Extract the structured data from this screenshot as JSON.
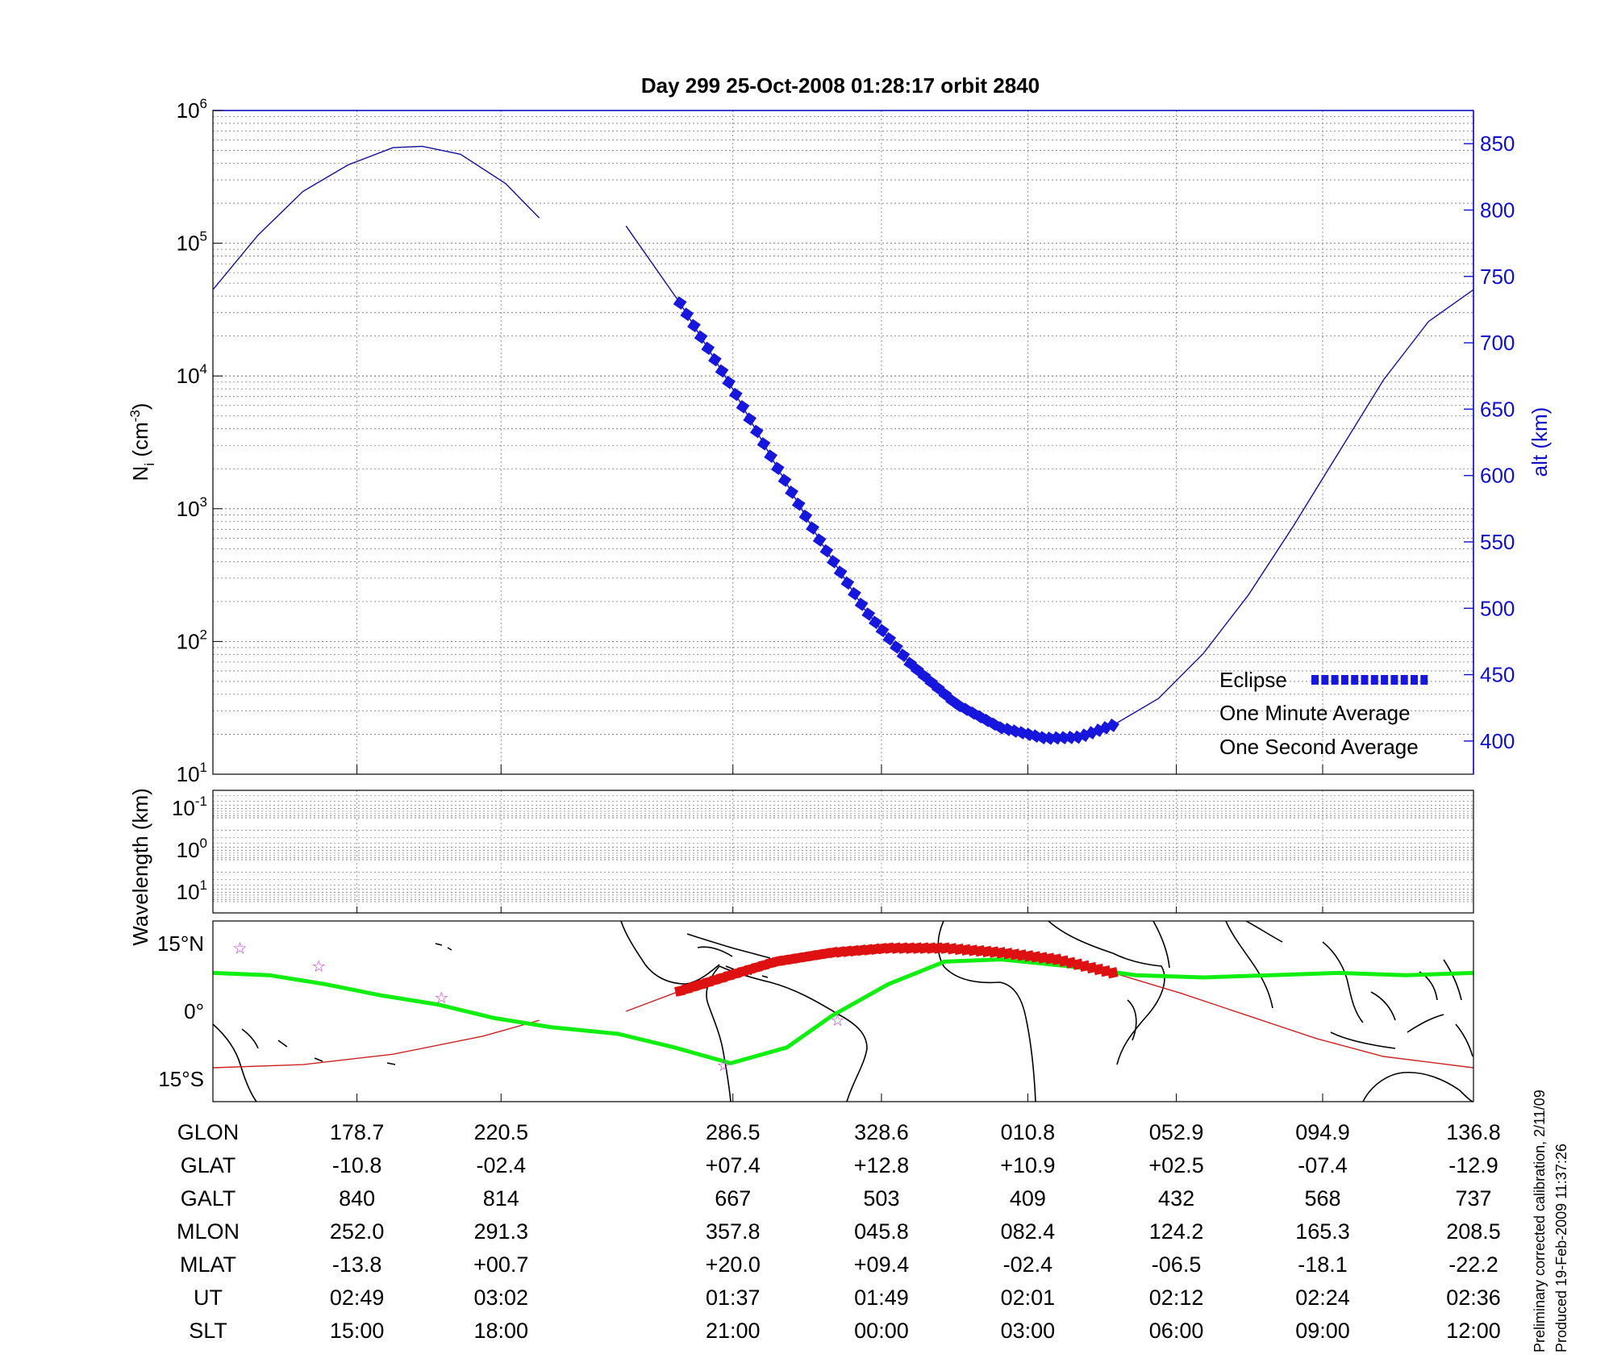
{
  "colors": {
    "altitude": "#10109a",
    "eclipse": "#1616dd",
    "one_minute": "#000000",
    "one_second": "#11ee11",
    "orbit_track": "#cc2222",
    "eclipse_track": "#dd1111",
    "stars": "#cc33cc",
    "right_axis": "#1010cc"
  },
  "chart_data": [
    {
      "type": "line",
      "title": "Day 299  25-Oct-2008 01:28:17   orbit 2840",
      "ylabel_main": "N",
      "ylabel_sub": "i",
      "ylabel_unit": "(cm",
      "ylabel_exp": "-3",
      "ylabel_close": ")",
      "ylog_range": [
        1,
        6
      ],
      "y_ticks": [
        {
          "base": "10",
          "exp": "6",
          "e": 6
        },
        {
          "base": "10",
          "exp": "5",
          "e": 5
        },
        {
          "base": "10",
          "exp": "4",
          "e": 4
        },
        {
          "base": "10",
          "exp": "3",
          "e": 3
        },
        {
          "base": "10",
          "exp": "2",
          "e": 2
        },
        {
          "base": "10",
          "exp": "1",
          "e": 1
        }
      ],
      "y2label": "alt (km)",
      "y2lim": [
        375,
        875
      ],
      "y2_ticks": [
        "850",
        "800",
        "750",
        "700",
        "650",
        "600",
        "550",
        "500",
        "450",
        "400"
      ],
      "x_range_min": [
        0,
        112
      ],
      "x_grid_min": [
        12.8,
        25.6,
        46.2,
        59.4,
        72.4,
        85.6,
        98.6
      ],
      "altitude_series": [
        {
          "t": 0,
          "alt": 740
        },
        {
          "t": 4,
          "alt": 781
        },
        {
          "t": 8,
          "alt": 814
        },
        {
          "t": 12,
          "alt": 834
        },
        {
          "t": 16,
          "alt": 847
        },
        {
          "t": 18.6,
          "alt": 848
        },
        {
          "t": 22,
          "alt": 842
        },
        {
          "t": 26,
          "alt": 820
        },
        {
          "t": 29,
          "alt": 794
        },
        null,
        {
          "t": 36.7,
          "alt": 788
        },
        {
          "t": 41.5,
          "alt": 730
        },
        {
          "t": 46,
          "alt": 668
        },
        {
          "t": 50,
          "alt": 608
        },
        {
          "t": 54,
          "alt": 550
        },
        {
          "t": 58,
          "alt": 498
        },
        {
          "t": 62,
          "alt": 458
        },
        {
          "t": 66,
          "alt": 428
        },
        {
          "t": 70,
          "alt": 410
        },
        {
          "t": 74,
          "alt": 402
        },
        {
          "t": 77,
          "alt": 403
        },
        {
          "t": 80,
          "alt": 412
        },
        {
          "t": 84,
          "alt": 432
        },
        {
          "t": 88,
          "alt": 466
        },
        {
          "t": 92,
          "alt": 510
        },
        {
          "t": 96,
          "alt": 562
        },
        {
          "t": 100,
          "alt": 617
        },
        {
          "t": 104,
          "alt": 672
        },
        {
          "t": 108,
          "alt": 716
        },
        {
          "t": 112,
          "alt": 740
        }
      ],
      "eclipse_range_min": [
        41.5,
        80
      ],
      "legend": [
        {
          "label": "Eclipse",
          "color": "#1616dd"
        },
        {
          "label": "One Minute Average",
          "color": "#000000"
        },
        {
          "label": "One Second Average",
          "color": "#11ee11"
        }
      ]
    },
    {
      "type": "heatmap",
      "ylabel": "Wavelength (km)",
      "y_ticks": [
        {
          "base": "10",
          "exp": "-1"
        },
        {
          "base": "10",
          "exp": "0"
        },
        {
          "base": "10",
          "exp": "1"
        }
      ]
    },
    {
      "type": "line",
      "ylim": [
        -20,
        20
      ],
      "y_ticks": [
        {
          "label": "15°N",
          "value": 15
        },
        {
          "label": "0°",
          "value": 0
        },
        {
          "label": "15°S",
          "value": -15
        }
      ],
      "orbit_track": [
        {
          "t": 0,
          "lat": -12.5
        },
        {
          "t": 8,
          "lat": -11.8
        },
        {
          "t": 16,
          "lat": -9.5
        },
        {
          "t": 24,
          "lat": -5.5
        },
        {
          "t": 29,
          "lat": -2
        },
        null,
        {
          "t": 36.7,
          "lat": 0
        },
        {
          "t": 41.5,
          "lat": 4.5
        },
        {
          "t": 46,
          "lat": 8
        },
        {
          "t": 50,
          "lat": 11
        },
        {
          "t": 55,
          "lat": 13
        },
        {
          "t": 60,
          "lat": 14
        },
        {
          "t": 65,
          "lat": 14
        },
        {
          "t": 70,
          "lat": 13
        },
        {
          "t": 75,
          "lat": 11.5
        },
        {
          "t": 80,
          "lat": 8.5
        },
        {
          "t": 86,
          "lat": 4
        },
        {
          "t": 92,
          "lat": -1
        },
        {
          "t": 98,
          "lat": -6
        },
        {
          "t": 104,
          "lat": -10
        },
        {
          "t": 112,
          "lat": -12.5
        }
      ],
      "one_second_track": [
        {
          "t": 0,
          "lat": 8.5
        },
        {
          "t": 5,
          "lat": 8
        },
        {
          "t": 10,
          "lat": 6
        },
        {
          "t": 15,
          "lat": 3.5
        },
        {
          "t": 20,
          "lat": 1.5
        },
        {
          "t": 25,
          "lat": -1.5
        },
        {
          "t": 30,
          "lat": -3.5
        },
        {
          "t": 36,
          "lat": -5
        },
        {
          "t": 41,
          "lat": -8
        },
        {
          "t": 46,
          "lat": -11.5
        },
        {
          "t": 51,
          "lat": -8
        },
        {
          "t": 55,
          "lat": -1
        },
        {
          "t": 60,
          "lat": 6
        },
        {
          "t": 65,
          "lat": 11
        },
        {
          "t": 70,
          "lat": 11.5
        },
        {
          "t": 76,
          "lat": 10
        },
        {
          "t": 82,
          "lat": 8
        },
        {
          "t": 88,
          "lat": 7.5
        },
        {
          "t": 94,
          "lat": 8
        },
        {
          "t": 100,
          "lat": 8.5
        },
        {
          "t": 106,
          "lat": 8
        },
        {
          "t": 112,
          "lat": 8.5
        }
      ],
      "eclipse_range_min": [
        41.5,
        80
      ],
      "stars": [
        {
          "t": 2.4,
          "lat": 14
        },
        {
          "t": 9.4,
          "lat": 10
        },
        {
          "t": 20.3,
          "lat": 3
        },
        {
          "t": 45.4,
          "lat": -12
        },
        {
          "t": 55.5,
          "lat": -2
        }
      ]
    }
  ],
  "table": {
    "col_t": [
      12.8,
      25.6,
      46.2,
      59.4,
      72.4,
      85.6,
      98.6,
      112
    ],
    "rows": [
      {
        "label": "GLON",
        "values": [
          "178.7",
          "220.5",
          "286.5",
          "328.6",
          "010.8",
          "052.9",
          "094.9",
          "136.8"
        ]
      },
      {
        "label": "GLAT",
        "values": [
          "-10.8",
          "-02.4",
          "+07.4",
          "+12.8",
          "+10.9",
          "+02.5",
          "-07.4",
          "-12.9"
        ]
      },
      {
        "label": "GALT",
        "values": [
          "840",
          "814",
          "667",
          "503",
          "409",
          "432",
          "568",
          "737"
        ]
      },
      {
        "label": "MLON",
        "values": [
          "252.0",
          "291.3",
          "357.8",
          "045.8",
          "082.4",
          "124.2",
          "165.3",
          "208.5"
        ]
      },
      {
        "label": "MLAT",
        "values": [
          "-13.8",
          "+00.7",
          "+20.0",
          "+09.4",
          "-02.4",
          "-06.5",
          "-18.1",
          "-22.2"
        ]
      },
      {
        "label": "UT",
        "values": [
          "02:49",
          "03:02",
          "01:37",
          "01:49",
          "02:01",
          "02:12",
          "02:24",
          "02:36"
        ]
      },
      {
        "label": "SLT",
        "values": [
          "15:00",
          "18:00",
          "21:00",
          "00:00",
          "03:00",
          "06:00",
          "09:00",
          "12:00"
        ]
      }
    ]
  },
  "footnote": {
    "line1": "Preliminary corrected calibration, 2/11/09",
    "line2": "Produced 19-Feb-2009 11:37:26"
  }
}
